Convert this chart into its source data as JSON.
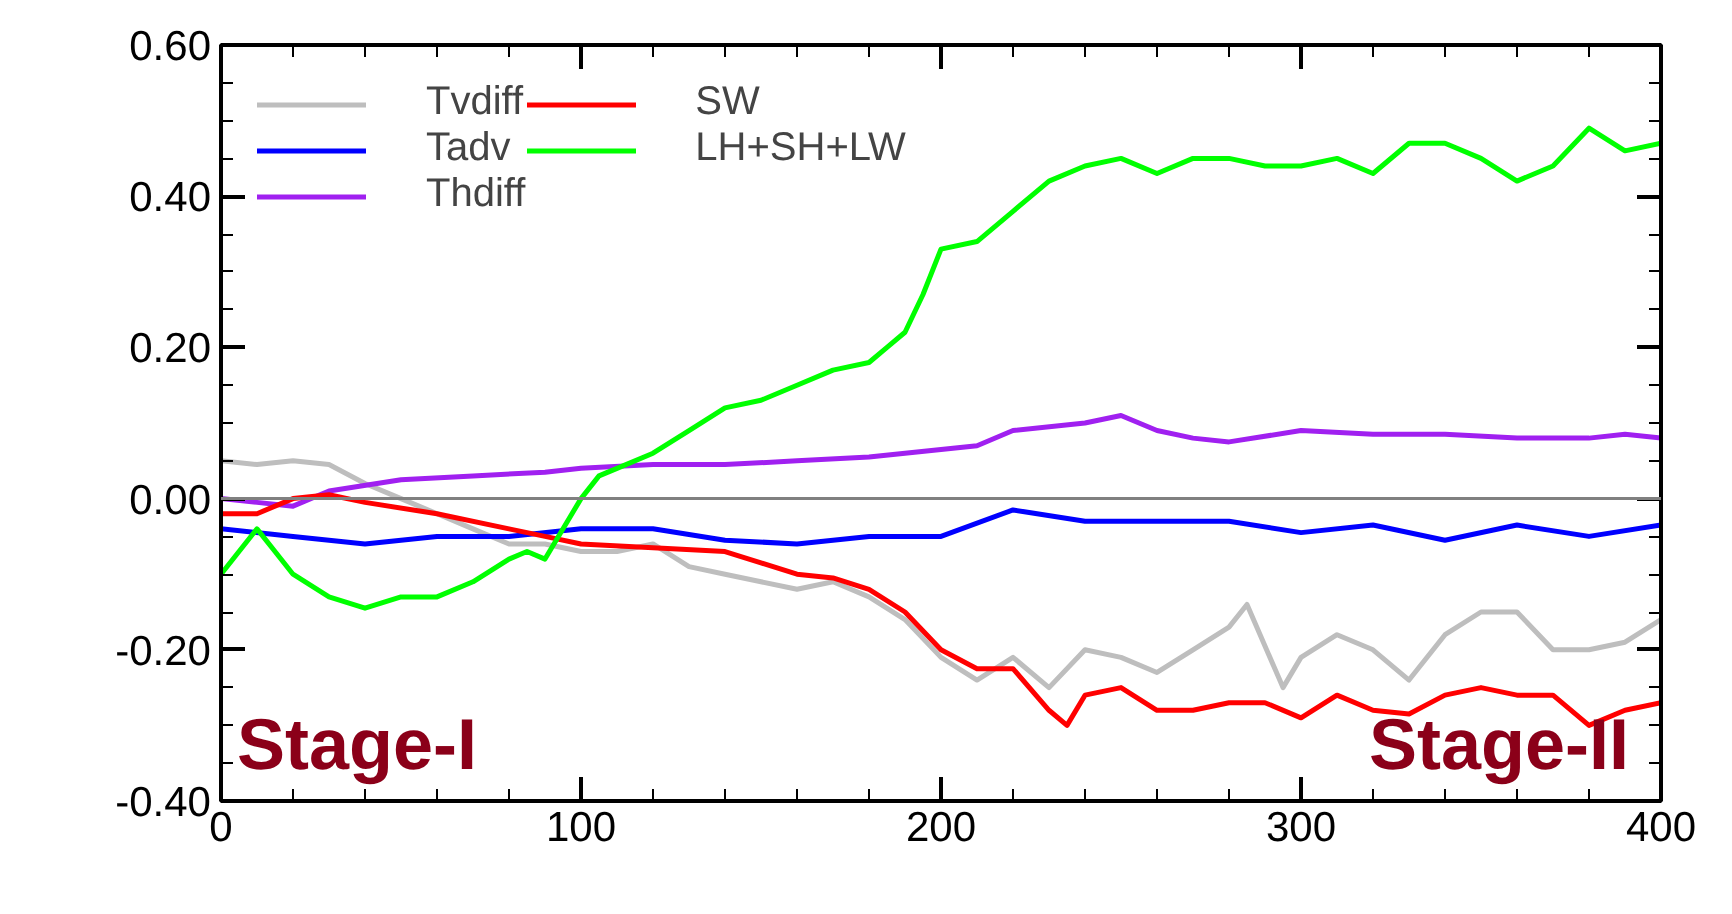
{
  "chart_data": {
    "type": "line",
    "xlim": [
      0,
      400
    ],
    "xticks": [
      0,
      100,
      200,
      300,
      400
    ],
    "ylim": [
      -0.4,
      0.6
    ],
    "yticks": [
      {
        "value": -0.4,
        "label": "-0.40"
      },
      {
        "value": -0.2,
        "label": "-0.20"
      },
      {
        "value": 0,
        "label": "0.00"
      },
      {
        "value": 0.2,
        "label": "0.20"
      },
      {
        "value": 0.4,
        "label": "0.40"
      },
      {
        "value": 0.6,
        "label": "0.60"
      }
    ],
    "grid": false,
    "legend": "top left",
    "line_style": "solid",
    "marker": "none",
    "ref_lines": [
      {
        "axis": "y",
        "value": 0,
        "color": "#808080"
      }
    ],
    "annotations": [
      "Stage-I",
      "Stage-II"
    ],
    "series": [
      {
        "name": "Tvdiff",
        "color": "#bebebe",
        "x": [
          0,
          10,
          20,
          30,
          40,
          50,
          60,
          70,
          80,
          90,
          100,
          110,
          120,
          130,
          140,
          150,
          160,
          170,
          180,
          190,
          200,
          210,
          220,
          230,
          240,
          250,
          260,
          270,
          280,
          285,
          295,
          300,
          310,
          320,
          330,
          340,
          350,
          360,
          370,
          380,
          390,
          400
        ],
        "values": [
          0.05,
          0.045,
          0.05,
          0.045,
          0.02,
          0.0,
          -0.02,
          -0.04,
          -0.06,
          -0.06,
          -0.07,
          -0.07,
          -0.06,
          -0.09,
          -0.1,
          -0.11,
          -0.12,
          -0.11,
          -0.13,
          -0.16,
          -0.21,
          -0.24,
          -0.21,
          -0.25,
          -0.2,
          -0.21,
          -0.23,
          -0.2,
          -0.17,
          -0.14,
          -0.25,
          -0.21,
          -0.18,
          -0.2,
          -0.24,
          -0.18,
          -0.15,
          -0.15,
          -0.2,
          -0.2,
          -0.19,
          -0.16
        ]
      },
      {
        "name": "Tadv",
        "color": "#0000ff",
        "x": [
          0,
          20,
          40,
          60,
          80,
          100,
          120,
          140,
          160,
          180,
          200,
          220,
          240,
          260,
          280,
          300,
          320,
          340,
          360,
          380,
          400
        ],
        "values": [
          -0.04,
          -0.05,
          -0.06,
          -0.05,
          -0.05,
          -0.04,
          -0.04,
          -0.055,
          -0.06,
          -0.05,
          -0.05,
          -0.015,
          -0.03,
          -0.03,
          -0.03,
          -0.045,
          -0.035,
          -0.055,
          -0.035,
          -0.05,
          -0.035
        ]
      },
      {
        "name": "Thdiff",
        "color": "#a020f0",
        "x": [
          0,
          10,
          20,
          30,
          50,
          70,
          90,
          100,
          120,
          140,
          160,
          180,
          200,
          210,
          220,
          240,
          250,
          260,
          270,
          280,
          300,
          320,
          340,
          360,
          380,
          390,
          400
        ],
        "values": [
          0.0,
          -0.005,
          -0.01,
          0.01,
          0.025,
          0.03,
          0.035,
          0.04,
          0.045,
          0.045,
          0.05,
          0.055,
          0.065,
          0.07,
          0.09,
          0.1,
          0.11,
          0.09,
          0.08,
          0.075,
          0.09,
          0.085,
          0.085,
          0.08,
          0.08,
          0.085,
          0.08
        ]
      },
      {
        "name": "SW",
        "color": "#ff0000",
        "x": [
          0,
          10,
          20,
          30,
          40,
          60,
          80,
          90,
          100,
          120,
          140,
          150,
          160,
          170,
          180,
          190,
          200,
          210,
          220,
          230,
          235,
          240,
          250,
          260,
          270,
          280,
          290,
          300,
          310,
          320,
          330,
          340,
          350,
          360,
          370,
          380,
          390,
          400
        ],
        "values": [
          -0.02,
          -0.02,
          0.0,
          0.005,
          -0.005,
          -0.02,
          -0.04,
          -0.05,
          -0.06,
          -0.065,
          -0.07,
          -0.085,
          -0.1,
          -0.105,
          -0.12,
          -0.15,
          -0.2,
          -0.225,
          -0.225,
          -0.28,
          -0.3,
          -0.26,
          -0.25,
          -0.28,
          -0.28,
          -0.27,
          -0.27,
          -0.29,
          -0.26,
          -0.28,
          -0.285,
          -0.26,
          -0.25,
          -0.26,
          -0.26,
          -0.3,
          -0.28,
          -0.27
        ]
      },
      {
        "name": "LH+SH+LW",
        "color": "#00ff00",
        "x": [
          0,
          5,
          10,
          15,
          20,
          30,
          40,
          50,
          60,
          70,
          80,
          85,
          90,
          100,
          105,
          110,
          120,
          130,
          140,
          150,
          160,
          170,
          180,
          185,
          190,
          195,
          200,
          210,
          220,
          230,
          240,
          250,
          260,
          270,
          280,
          290,
          300,
          310,
          320,
          330,
          340,
          350,
          360,
          370,
          380,
          390,
          400
        ],
        "values": [
          -0.1,
          -0.07,
          -0.04,
          -0.07,
          -0.1,
          -0.13,
          -0.145,
          -0.13,
          -0.13,
          -0.11,
          -0.08,
          -0.07,
          -0.08,
          0.0,
          0.03,
          0.04,
          0.06,
          0.09,
          0.12,
          0.13,
          0.15,
          0.17,
          0.18,
          0.2,
          0.22,
          0.27,
          0.33,
          0.34,
          0.38,
          0.42,
          0.44,
          0.45,
          0.43,
          0.45,
          0.45,
          0.44,
          0.44,
          0.45,
          0.43,
          0.47,
          0.47,
          0.45,
          0.42,
          0.44,
          0.49,
          0.46,
          0.47
        ]
      }
    ]
  }
}
